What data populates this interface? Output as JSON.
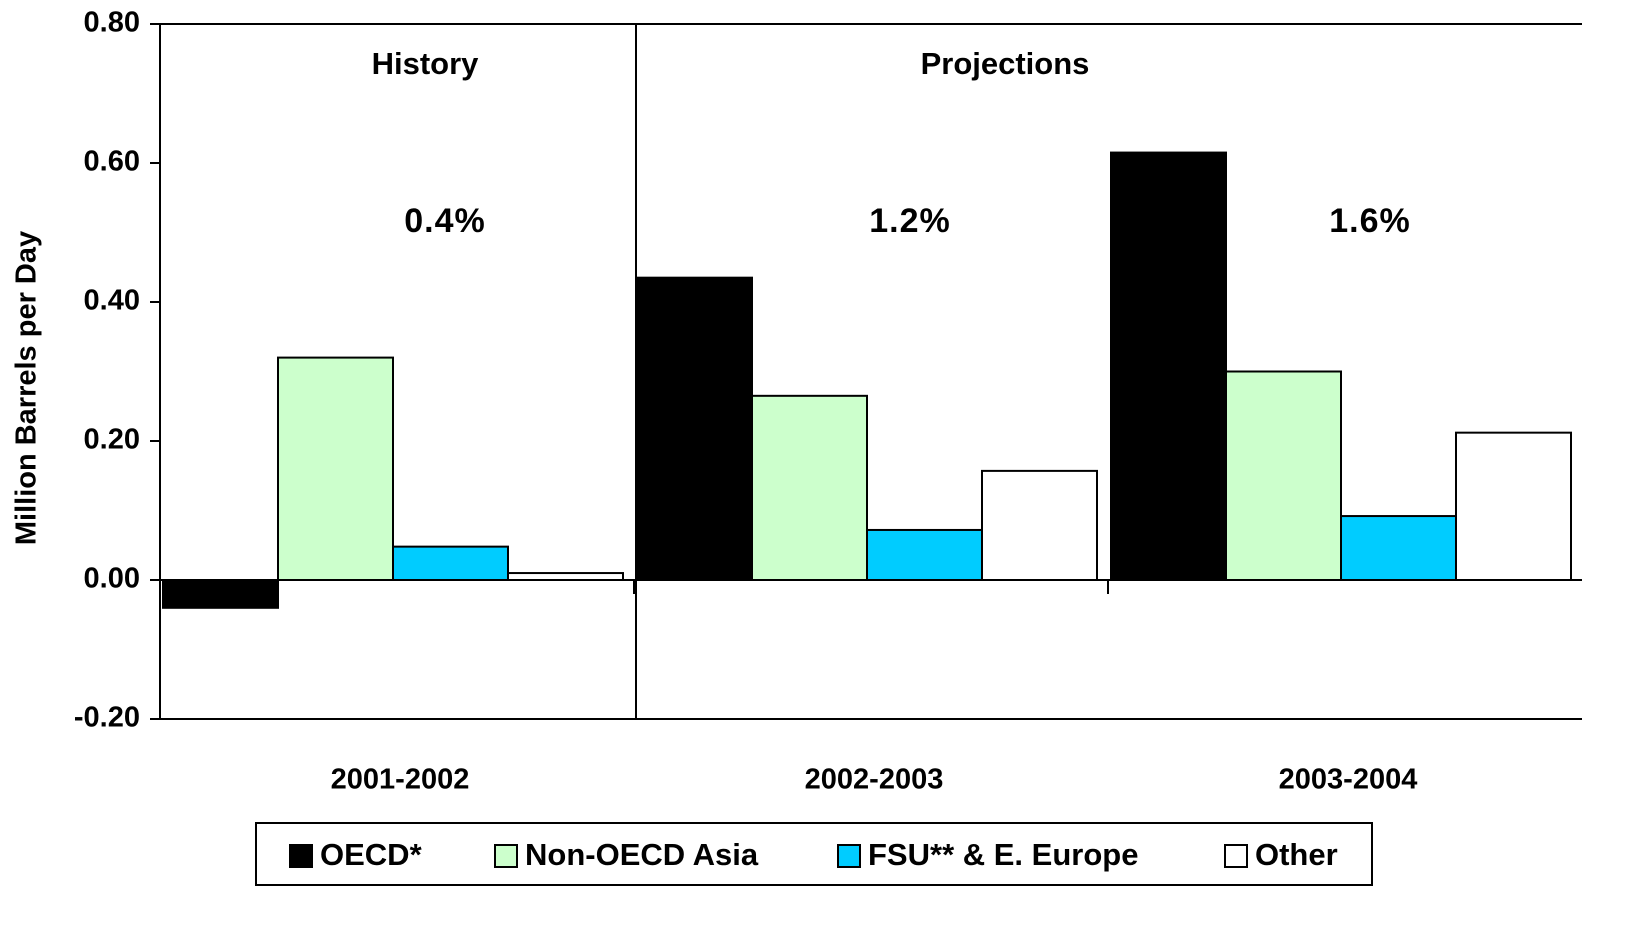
{
  "chart_data": {
    "type": "bar",
    "y_label": "Million Barrels per Day",
    "categories": [
      "2001-2002",
      "2002-2003",
      "2003-2004"
    ],
    "series": [
      {
        "name": "OECD*",
        "color": "#000000",
        "values": [
          -0.04,
          0.435,
          0.615
        ]
      },
      {
        "name": "Non-OECD Asia",
        "color": "#ccffcc",
        "values": [
          0.32,
          0.265,
          0.3
        ]
      },
      {
        "name": "FSU** & E. Europe",
        "color": "#00ccff",
        "values": [
          0.048,
          0.072,
          0.092
        ]
      },
      {
        "name": "Other",
        "color": "#ffffff",
        "values": [
          0.01,
          0.157,
          0.212
        ]
      }
    ],
    "ylim": [
      -0.2,
      0.8
    ],
    "yticks": [
      {
        "value": -0.2,
        "label": "-0.20"
      },
      {
        "value": 0,
        "label": "0.00"
      },
      {
        "value": 0.2,
        "label": "0.20"
      },
      {
        "value": 0.4,
        "label": "0.40"
      },
      {
        "value": 0.6,
        "label": "0.60"
      },
      {
        "value": 0.8,
        "label": "0.80"
      }
    ],
    "section_labels": [
      "History",
      "Projections"
    ],
    "group_annotations": [
      "0.4%",
      "1.2%",
      "1.6%"
    ],
    "legend": "bottom"
  }
}
